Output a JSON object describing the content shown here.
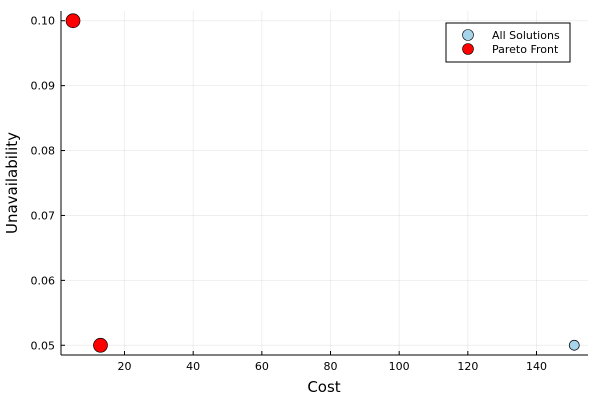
{
  "chart_data": {
    "type": "scatter",
    "xlabel": "Cost",
    "ylabel": "Unavailability",
    "xlim": [
      1.5,
      155
    ],
    "ylim": [
      0.0485,
      0.1015
    ],
    "xticks": [
      20,
      40,
      60,
      80,
      100,
      120,
      140
    ],
    "yticks": [
      0.05,
      0.06,
      0.07,
      0.08,
      0.09,
      0.1
    ],
    "xtick_labels": [
      "20",
      "40",
      "60",
      "80",
      "100",
      "120",
      "140"
    ],
    "ytick_labels": [
      "0.05",
      "0.06",
      "0.07",
      "0.08",
      "0.09",
      "0.10"
    ],
    "grid": true,
    "legend_position": "top-right",
    "series": [
      {
        "name": "All Solutions",
        "color": "#a6d4ea",
        "marker": "circle",
        "size": "small",
        "points": [
          {
            "x": 5,
            "y": 0.1
          },
          {
            "x": 13,
            "y": 0.05
          },
          {
            "x": 151,
            "y": 0.05
          }
        ]
      },
      {
        "name": "Pareto Front",
        "color": "#ff0000",
        "marker": "circle",
        "size": "large",
        "points": [
          {
            "x": 5,
            "y": 0.1
          },
          {
            "x": 13,
            "y": 0.05
          }
        ]
      }
    ]
  }
}
